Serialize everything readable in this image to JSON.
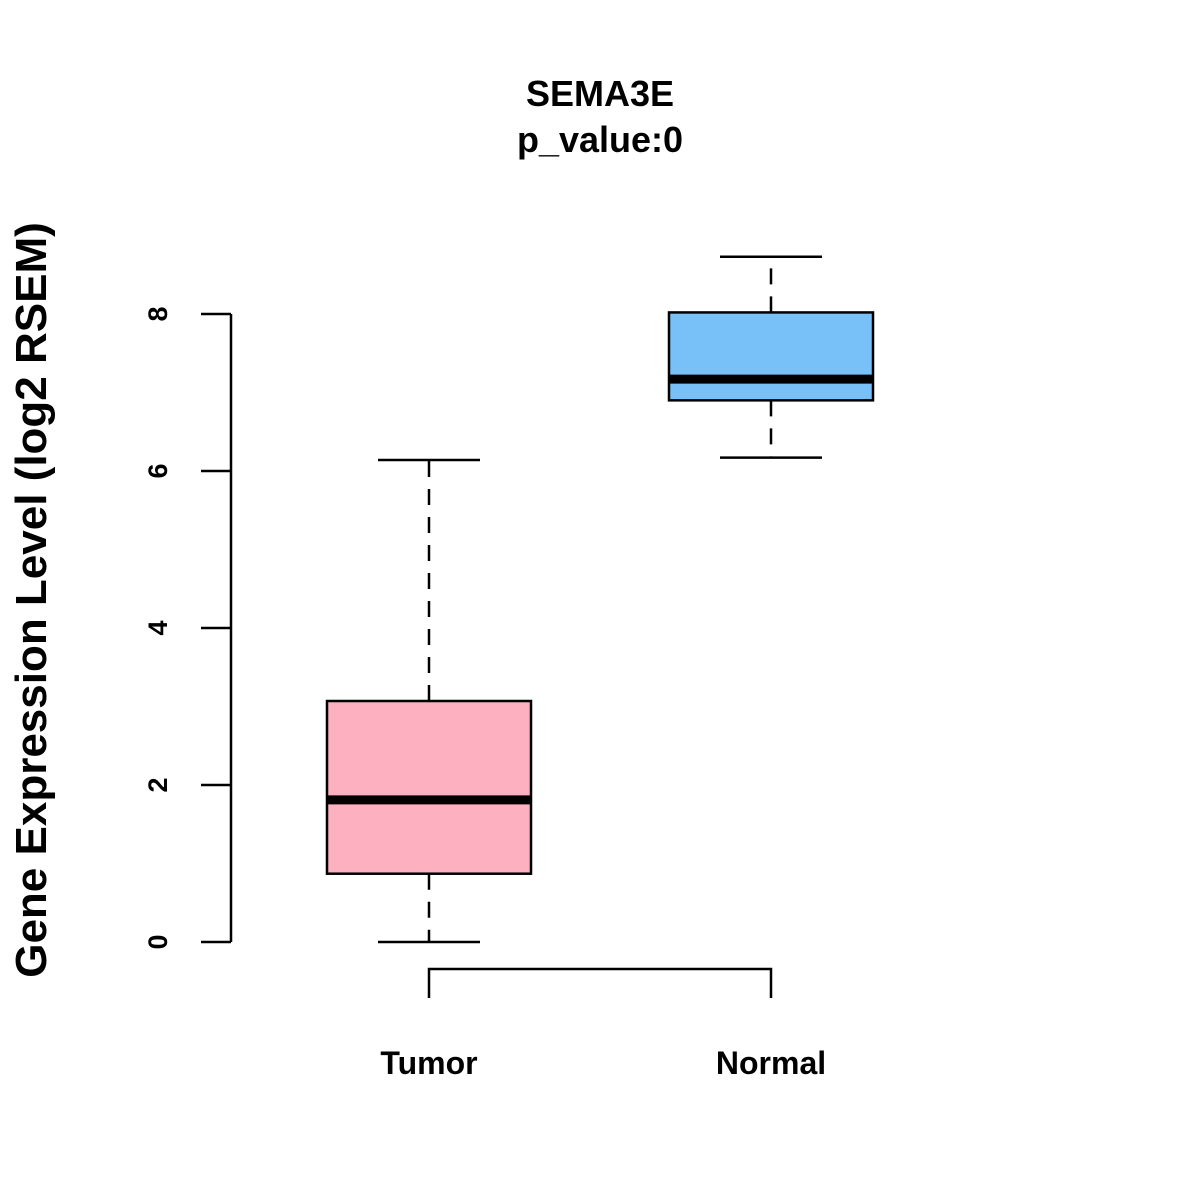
{
  "chart_data": {
    "type": "boxplot",
    "title": "SEMA3E",
    "subtitle": "p_value:0",
    "xlabel": "",
    "ylabel": "Gene Expression Level (log2 RSEM)",
    "ylim": [
      0,
      8
    ],
    "yticks": [
      0,
      2,
      4,
      6,
      8
    ],
    "categories": [
      "Tumor",
      "Normal"
    ],
    "series": [
      {
        "name": "Tumor",
        "min": 0.0,
        "q1": 0.87,
        "median": 1.81,
        "q3": 3.07,
        "max": 6.14,
        "color": "#FDB0C0"
      },
      {
        "name": "Normal",
        "min": 6.17,
        "q1": 6.9,
        "median": 7.17,
        "q3": 8.02,
        "max": 8.73,
        "color": "#78C0F8"
      }
    ],
    "comparison_bracket": [
      "Tumor",
      "Normal"
    ],
    "grid": false,
    "legend": "none"
  }
}
